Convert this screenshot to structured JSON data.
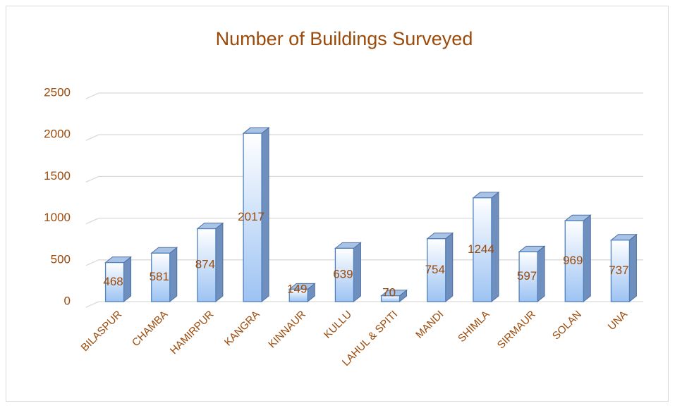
{
  "chart_data": {
    "type": "bar",
    "title": "Number of Buildings Surveyed",
    "categories": [
      "BILASPUR",
      "CHAMBA",
      "HAMIRPUR",
      "KANGRA",
      "KINNAUR",
      "KULLU",
      "LAHUL & SPITI",
      "MANDI",
      "SHIMLA",
      "SIRMAUR",
      "SOLAN",
      "UNA"
    ],
    "values": [
      468,
      581,
      874,
      2017,
      149,
      639,
      70,
      754,
      1244,
      597,
      969,
      737
    ],
    "color": "#9dc3f3",
    "ylim": [
      0,
      2500
    ],
    "yticks": [
      0,
      500,
      1000,
      1500,
      2000,
      2500
    ],
    "grid": true
  }
}
